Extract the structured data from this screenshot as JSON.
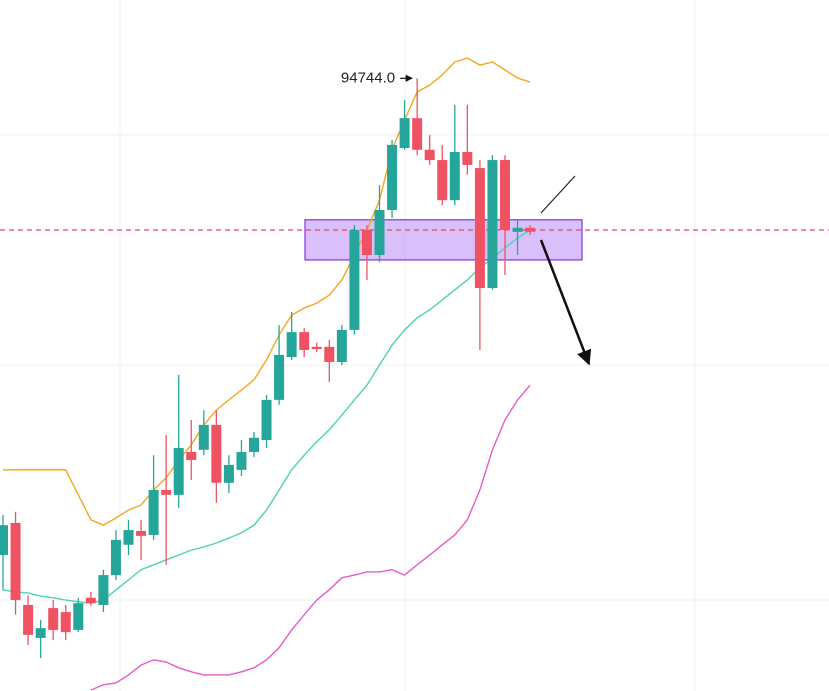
{
  "chart_data": {
    "type": "candlestick",
    "ylim": [
      81000,
      96500
    ],
    "up_color": "#26a69a",
    "down_color": "#ef5363",
    "open": [
      84050,
      84770,
      82930,
      82190,
      82860,
      82770,
      82370,
      83090,
      82930,
      83600,
      84280,
      84590,
      84500,
      85510,
      85400,
      86360,
      86410,
      86970,
      85670,
      85960,
      86360,
      86630,
      87530,
      88490,
      89050,
      88720,
      88720,
      88380,
      89100,
      91340,
      90780,
      91790,
      93180,
      93850,
      93140,
      92910,
      92010,
      93090,
      92730,
      90040,
      92910,
      91300,
      91390
    ],
    "high": [
      84950,
      85020,
      83150,
      82590,
      83040,
      82930,
      83090,
      83220,
      83720,
      84610,
      84840,
      84840,
      86290,
      86740,
      88090,
      87080,
      87300,
      87300,
      86290,
      86630,
      86810,
      87640,
      89210,
      89500,
      89140,
      88810,
      88870,
      89210,
      91450,
      91450,
      92350,
      93360,
      94260,
      94744,
      93470,
      93250,
      94150,
      94150,
      92910,
      93020,
      93020,
      91570,
      91450
    ],
    "low": [
      83270,
      82710,
      82030,
      81740,
      82140,
      82140,
      82320,
      82910,
      82770,
      83490,
      84050,
      83940,
      84390,
      83830,
      85110,
      85730,
      86290,
      85220,
      85440,
      85820,
      86250,
      86450,
      87420,
      88430,
      88490,
      88600,
      87930,
      88310,
      88990,
      90220,
      90620,
      91610,
      93140,
      93020,
      92800,
      91900,
      91900,
      92580,
      88650,
      90000,
      90330,
      90780,
      91230
    ],
    "close": [
      84720,
      83040,
      82260,
      82410,
      82370,
      82320,
      82970,
      82970,
      83600,
      84390,
      84610,
      84480,
      85510,
      85400,
      86450,
      86180,
      86970,
      85670,
      86070,
      86360,
      86680,
      87530,
      88540,
      89050,
      88650,
      88670,
      88380,
      89100,
      91340,
      90780,
      91790,
      93250,
      93850,
      93140,
      92910,
      92010,
      93090,
      92800,
      90040,
      92910,
      91340,
      91390,
      91300
    ],
    "overlays": [
      {
        "color": "#f5a623",
        "values": [
          85960,
          85960,
          85960,
          85960,
          85960,
          85960,
          85400,
          84840,
          84720,
          84880,
          85060,
          85170,
          85510,
          85780,
          86180,
          86520,
          86970,
          87300,
          87530,
          87750,
          87980,
          88430,
          88990,
          89430,
          89590,
          89700,
          89880,
          90220,
          90780,
          91340,
          92010,
          93140,
          93810,
          94440,
          94590,
          94820,
          95110,
          95200,
          95040,
          95110,
          94930,
          94750,
          94660
        ]
      },
      {
        "color": "#4fd1b5",
        "values": [
          83270,
          83220,
          83200,
          83130,
          83090,
          83040,
          83000,
          82970,
          83040,
          83270,
          83490,
          83720,
          83830,
          83940,
          84050,
          84160,
          84230,
          84320,
          84430,
          84550,
          84720,
          85060,
          85510,
          85960,
          86290,
          86590,
          86860,
          87190,
          87530,
          87860,
          88310,
          88760,
          89100,
          89370,
          89550,
          89770,
          90000,
          90220,
          90490,
          90710,
          90940,
          91160,
          91340
        ]
      },
      {
        "color": "#e85bc7",
        "values": [
          null,
          null,
          null,
          null,
          null,
          null,
          null,
          81020,
          81140,
          81180,
          81360,
          81580,
          81700,
          81650,
          81520,
          81430,
          81360,
          81360,
          81360,
          81430,
          81520,
          81700,
          81970,
          82370,
          82710,
          83040,
          83270,
          83540,
          83600,
          83670,
          83670,
          83720,
          83600,
          83830,
          84050,
          84280,
          84500,
          84840,
          85510,
          86410,
          87080,
          87530,
          87860
        ]
      }
    ],
    "price_line": 91340,
    "price_line_color": "#e8485a",
    "zone": [
      90670,
      91570
    ],
    "zone_color": "#b98cf5",
    "annotation": {
      "value": 94744,
      "label": "94744.0"
    }
  }
}
